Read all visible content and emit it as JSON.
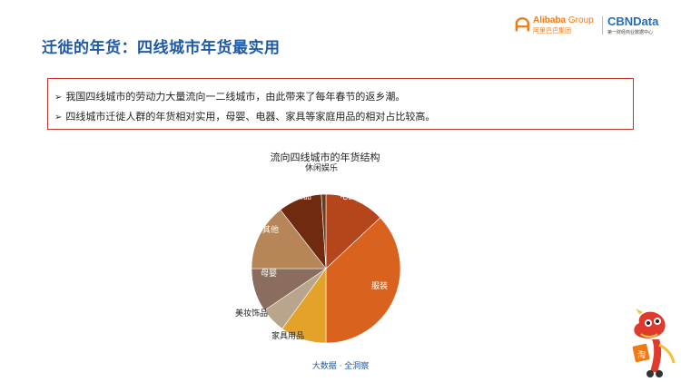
{
  "header": {
    "title": "迁徙的年货：四线城市年货最实用",
    "alibaba_logo": {
      "en": "Alibaba",
      "group": "Group",
      "cn": "阿里巴巴集团"
    },
    "cbn_logo": {
      "name": "CBNData",
      "tagline": "第一财经商业数据中心"
    }
  },
  "bullets": [
    "我国四线城市的劳动力大量流向一二线城市，由此带来了每年春节的返乡潮。",
    "四线城市迁徙人群的年货相对实用，母婴、电器、家具等家庭用品的相对占比较高。"
  ],
  "footer": {
    "note": "大数据 · 全洞察"
  },
  "colors": {
    "title": "#1f5aa6",
    "box_border": "#c0392b",
    "slices": [
      "#b5451b",
      "#d9631e",
      "#e3a22a",
      "#b9a48c",
      "#8a6d5c",
      "#b68658",
      "#6f2a10",
      "#6b3a1a"
    ]
  },
  "chart_data": {
    "type": "pie",
    "title": "流向四线城市的年货结构",
    "start_angle_deg": 0,
    "direction": "clockwise",
    "slices": [
      {
        "label": "电器",
        "value": 13.0
      },
      {
        "label": "服装",
        "value": 37.0
      },
      {
        "label": "家具用品",
        "value": 10.0
      },
      {
        "label": "美妆饰品",
        "value": 5.5
      },
      {
        "label": "母婴",
        "value": 9.5
      },
      {
        "label": "其他",
        "value": 14.5
      },
      {
        "label": "食品",
        "value": 9.5
      },
      {
        "label": "休闲娱乐",
        "value": 1.0
      }
    ]
  }
}
